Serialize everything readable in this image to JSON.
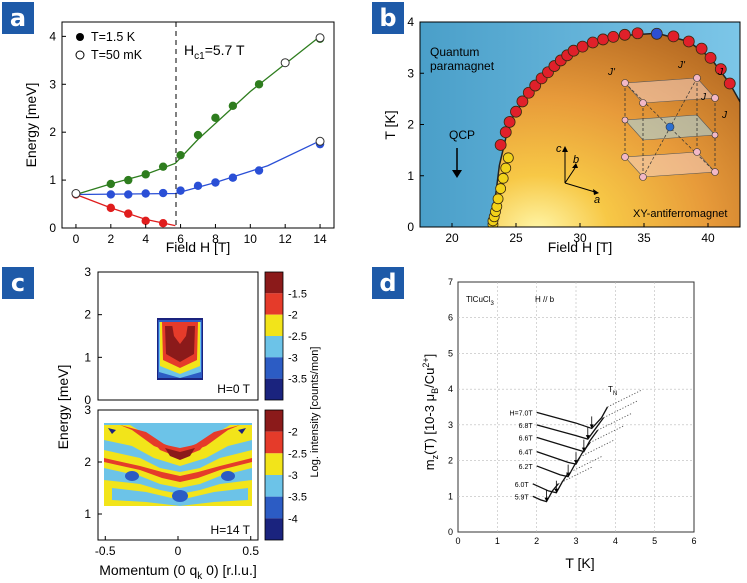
{
  "panel_a": {
    "label": "a",
    "legend": [
      "T=1.5 K",
      "T=50 mK"
    ],
    "annotation": "H",
    "annotation_sub": "c1",
    "annotation_tail": "=5.7 T",
    "xlabel": "Field H [T]",
    "ylabel": "Energy [meV]",
    "xticks": [
      "0",
      "2",
      "4",
      "6",
      "8",
      "10",
      "12",
      "14"
    ],
    "yticks": [
      "0",
      "1",
      "2",
      "3",
      "4"
    ]
  },
  "panel_b": {
    "label": "b",
    "xlabel": "Field H [T]",
    "ylabel": "T [K]",
    "xticks": [
      "20",
      "25",
      "30",
      "35",
      "40"
    ],
    "yticks": [
      "0",
      "1",
      "2",
      "3",
      "4"
    ],
    "text_quantum_1": "Quantum",
    "text_quantum_2": "paramagnet",
    "text_qcp": "QCP",
    "text_xy": "XY-antiferromagnet",
    "lattice_labels": [
      "J'",
      "J'",
      "J",
      "J",
      "J",
      "c",
      "b",
      "a"
    ]
  },
  "panel_c": {
    "label": "c",
    "ylabel": "Energy [meV]",
    "xlabel": "Momentum (0 q",
    "xlabel_sub": "k",
    "xlabel_tail": " 0) [r.l.u.]",
    "top_note": "H=0 T",
    "bottom_note": "H=14 T",
    "top_yticks": [
      "0",
      "1",
      "2",
      "3"
    ],
    "bottom_yticks": [
      "1",
      "2",
      "3"
    ],
    "xticks": [
      "-0.5",
      "0",
      "0.5"
    ],
    "cbar_label": "Log. intensity [counts/mon]",
    "cbar_top_ticks": [
      "-1.5",
      "-2",
      "-2.5",
      "-3",
      "-3.5"
    ],
    "cbar_bottom_ticks": [
      "-2",
      "-2.5",
      "-3",
      "-3.5",
      "-4"
    ],
    "colors": [
      "#8b1a1a",
      "#e53b2a",
      "#f2e41a",
      "#6cc3e8",
      "#2c5cc4",
      "#1a237e"
    ]
  },
  "panel_d": {
    "label": "d",
    "ylabel": "m",
    "ylabel_sub": "z",
    "ylabel_tail": "(T) [10-3 μ",
    "ylabel_sub2": "B",
    "ylabel_tail2": "/Cu",
    "ylabel_sup": "2+",
    "ylabel_end": "]",
    "xlabel": "T [K]",
    "xticks": [
      "0",
      "1",
      "2",
      "3",
      "4",
      "5",
      "6"
    ],
    "yticks": [
      "0",
      "1",
      "2",
      "3",
      "4",
      "5",
      "6",
      "7"
    ],
    "header_left": "TlCuCl",
    "header_left_sub": "3",
    "header_right": "H // b",
    "curve_labels": [
      "H=7.0T",
      "6.8T",
      "6.6T",
      "6.4T",
      "6.2T",
      "6.0T",
      "5.9T"
    ],
    "tn_label": "T",
    "tn_sub": "N"
  },
  "chart_data": [
    {
      "type": "scatter",
      "title": "",
      "xlabel": "Field H [T]",
      "ylabel": "Energy [meV]",
      "xlim": [
        -0.8,
        14.8
      ],
      "ylim": [
        0,
        4.3
      ],
      "series": [
        {
          "name": "T=1.5 K",
          "color": "#2e7d1e",
          "x": [
            2,
            3,
            4,
            5,
            6,
            7,
            8,
            9,
            10.5,
            14
          ],
          "y": [
            0.92,
            1.0,
            1.12,
            1.28,
            1.52,
            1.94,
            2.3,
            2.55,
            3.0,
            3.95
          ]
        },
        {
          "name": "T=1.5 K",
          "color": "#2a4fd6",
          "x": [
            2,
            3,
            4,
            5,
            6,
            7,
            8,
            9,
            10.5,
            14
          ],
          "y": [
            0.7,
            0.7,
            0.72,
            0.73,
            0.78,
            0.88,
            0.95,
            1.05,
            1.2,
            1.75
          ]
        },
        {
          "name": "T=1.5 K",
          "color": "#e01d1d",
          "x": [
            0,
            2,
            3,
            4,
            5
          ],
          "y": [
            0.7,
            0.42,
            0.3,
            0.15,
            0.1
          ]
        },
        {
          "name": "T=50 mK",
          "color": "#ffffff",
          "x": [
            0,
            12,
            14,
            14
          ],
          "y": [
            0.72,
            3.45,
            3.97,
            1.81
          ]
        }
      ]
    },
    {
      "type": "scatter",
      "title": "",
      "xlabel": "Field H [T]",
      "ylabel": "T [K]",
      "xlim": [
        17.5,
        42.5
      ],
      "ylim": [
        0,
        4
      ],
      "series": [
        {
          "name": "",
          "color": "#e0202a",
          "x": [
            23.8,
            24.2,
            24.5,
            25.0,
            25.5,
            26.0,
            26.5,
            27.0,
            27.5,
            28.0,
            28.5,
            29.0,
            29.5,
            30.2,
            31.0,
            31.8,
            32.6,
            33.5,
            34.5,
            37.3,
            38.5,
            39.5,
            40.2,
            41.0,
            41.7
          ],
          "y": [
            1.6,
            1.85,
            2.05,
            2.25,
            2.45,
            2.62,
            2.76,
            2.9,
            3.02,
            3.14,
            3.25,
            3.35,
            3.44,
            3.52,
            3.6,
            3.66,
            3.71,
            3.75,
            3.78,
            3.72,
            3.62,
            3.48,
            3.3,
            3.08,
            2.8
          ]
        },
        {
          "name": "",
          "color": "#2c4fd2",
          "x": [
            36.0
          ],
          "y": [
            3.77
          ]
        },
        {
          "name": "",
          "color": "#f2d21a",
          "x": [
            23.2,
            23.2,
            23.3,
            23.4,
            23.5,
            23.6,
            23.8,
            24.0,
            24.2,
            24.4
          ],
          "y": [
            0.05,
            0.12,
            0.2,
            0.3,
            0.4,
            0.55,
            0.75,
            0.95,
            1.15,
            1.35
          ]
        }
      ]
    },
    {
      "type": "heatmap",
      "title": "",
      "xlabel": "Momentum (0 qk 0) [r.l.u.]",
      "ylabel": "Energy [meV]",
      "xlim": [
        -0.55,
        0.55
      ],
      "series": [
        {
          "name": "H=0 T",
          "ylim": [
            0,
            3
          ],
          "levels": [
            -1.5,
            -2,
            -2.5,
            -3,
            -3.5
          ]
        },
        {
          "name": "H=14 T",
          "ylim": [
            0.5,
            3
          ],
          "levels": [
            -2,
            -2.5,
            -3,
            -3.5,
            -4
          ]
        }
      ]
    },
    {
      "type": "line",
      "title": "",
      "xlabel": "T [K]",
      "ylabel": "mz(T) [10-3 μB/Cu2+]",
      "xlim": [
        0,
        6
      ],
      "ylim": [
        0,
        7
      ],
      "series": [
        {
          "name": "H=7.0T",
          "x": [
            2.0,
            3.0,
            3.4,
            3.65,
            3.8
          ],
          "y": [
            3.35,
            3.05,
            2.9,
            3.2,
            3.5
          ]
        },
        {
          "name": "6.8T",
          "x": [
            2.0,
            3.0,
            3.3,
            3.5,
            3.7
          ],
          "y": [
            3.0,
            2.7,
            2.6,
            2.9,
            3.2
          ]
        },
        {
          "name": "6.6T",
          "x": [
            2.0,
            2.9,
            3.2,
            3.35,
            3.55
          ],
          "y": [
            2.65,
            2.35,
            2.25,
            2.55,
            2.85
          ]
        },
        {
          "name": "6.4T",
          "x": [
            2.0,
            2.8,
            3.0,
            3.15,
            3.35
          ],
          "y": [
            2.25,
            1.95,
            1.9,
            2.2,
            2.5
          ]
        },
        {
          "name": "6.2T",
          "x": [
            2.0,
            2.6,
            2.8,
            2.95,
            3.1
          ],
          "y": [
            1.85,
            1.6,
            1.55,
            1.85,
            2.1
          ]
        },
        {
          "name": "6.0T",
          "x": [
            1.9,
            2.3,
            2.5,
            2.65,
            2.8
          ],
          "y": [
            1.35,
            1.15,
            1.1,
            1.4,
            1.65
          ]
        },
        {
          "name": "5.9T",
          "x": [
            1.9,
            2.1,
            2.25,
            2.4,
            2.55
          ],
          "y": [
            1.0,
            0.9,
            0.85,
            1.15,
            1.35
          ]
        }
      ]
    }
  ]
}
